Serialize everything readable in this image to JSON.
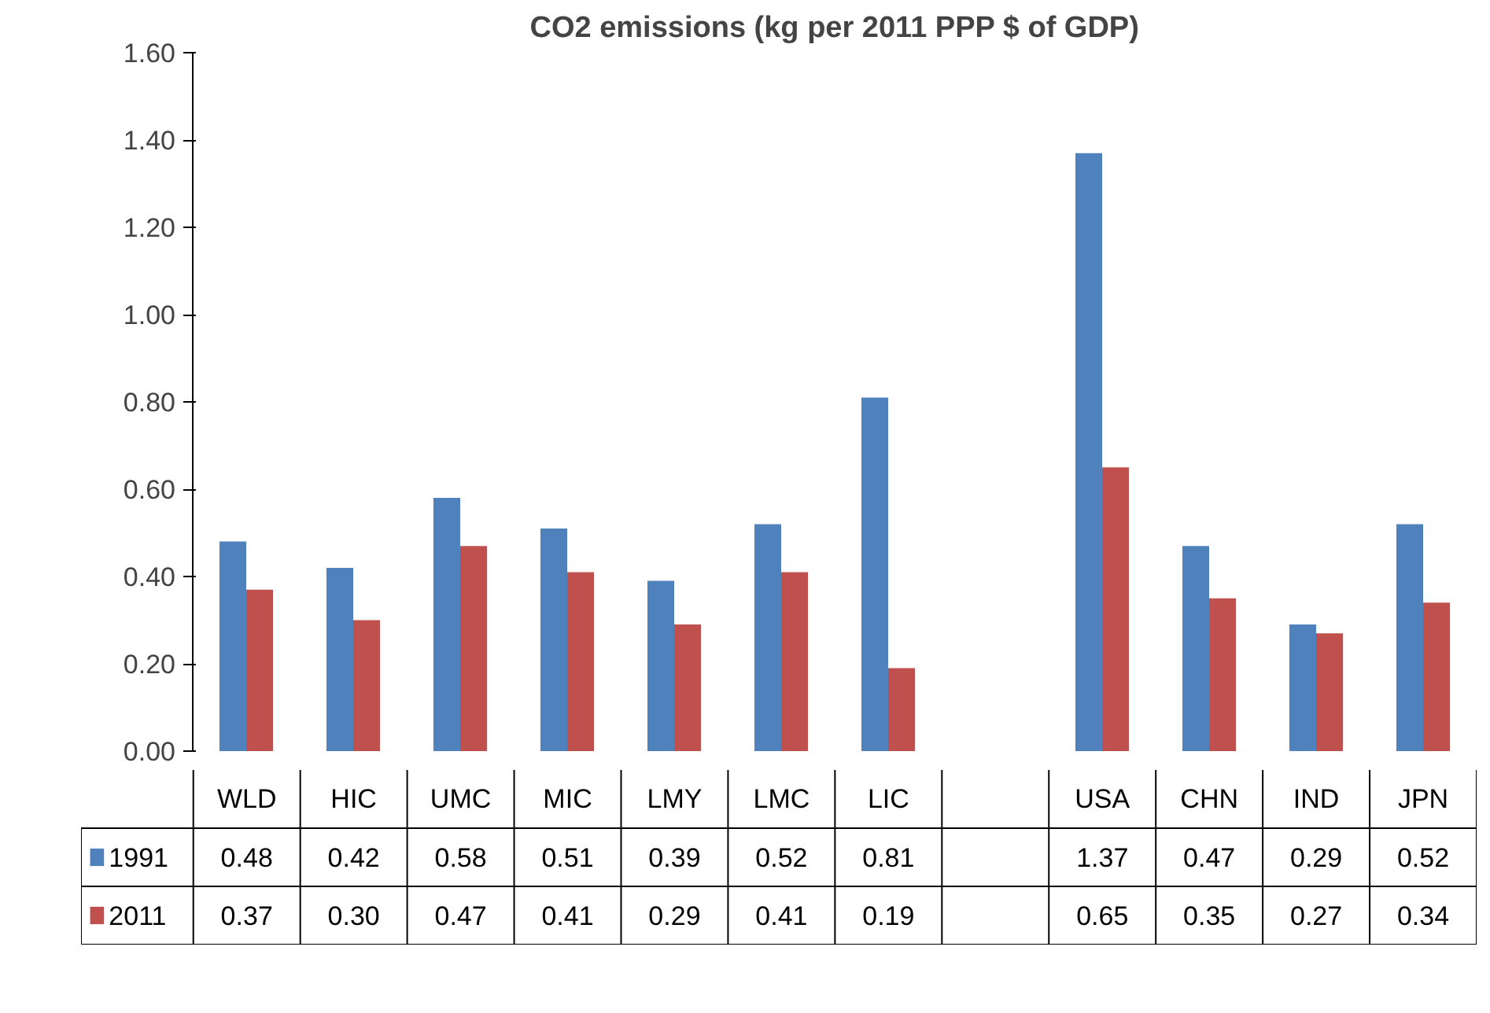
{
  "chart_data": {
    "type": "bar",
    "title": "CO2 emissions (kg per 2011 PPP $ of GDP)",
    "categories": [
      "WLD",
      "HIC",
      "UMC",
      "MIC",
      "LMY",
      "LMC",
      "LIC",
      null,
      "USA",
      "CHN",
      "IND",
      "JPN"
    ],
    "series": [
      {
        "name": "1991",
        "color": "#4f81bd",
        "values": [
          0.48,
          0.42,
          0.58,
          0.51,
          0.39,
          0.52,
          0.81,
          null,
          1.37,
          0.47,
          0.29,
          0.52
        ],
        "value_labels": [
          "0.48",
          "0.42",
          "0.58",
          "0.51",
          "0.39",
          "0.52",
          "0.81",
          null,
          "1.37",
          "0.47",
          "0.29",
          "0.52"
        ]
      },
      {
        "name": "2011",
        "color": "#c0504d",
        "values": [
          0.37,
          0.3,
          0.47,
          0.41,
          0.29,
          0.41,
          0.19,
          null,
          0.65,
          0.35,
          0.27,
          0.34
        ],
        "value_labels": [
          "0.37",
          "0.30",
          "0.47",
          "0.41",
          "0.29",
          "0.41",
          "0.19",
          null,
          "0.65",
          "0.35",
          "0.27",
          "0.34"
        ]
      }
    ],
    "ylim": [
      0,
      1.6
    ],
    "yticks": [
      {
        "value": 0,
        "label": "0.00"
      },
      {
        "value": 0.2,
        "label": "0.20"
      },
      {
        "value": 0.4,
        "label": "0.40"
      },
      {
        "value": 0.6,
        "label": "0.60"
      },
      {
        "value": 0.8,
        "label": "0.80"
      },
      {
        "value": 1.0,
        "label": "1.00"
      },
      {
        "value": 1.2,
        "label": "1.20"
      },
      {
        "value": 1.4,
        "label": "1.40"
      },
      {
        "value": 1.6,
        "label": "1.60"
      }
    ],
    "grid": false,
    "legend": "bottom"
  }
}
